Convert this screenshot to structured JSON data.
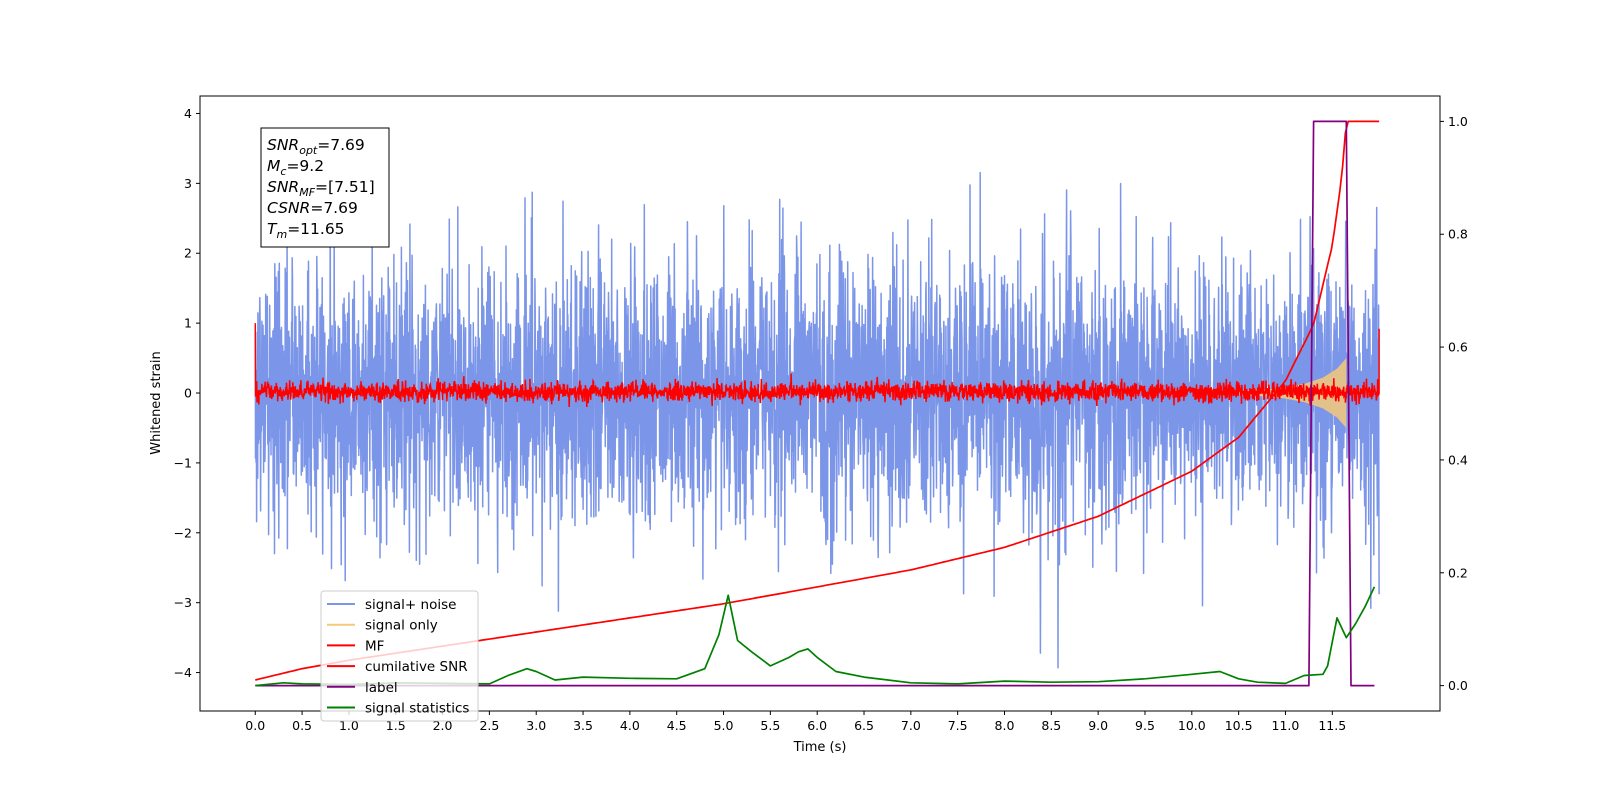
{
  "chart_data": {
    "type": "line",
    "xlabel": "Time (s)",
    "ylabel": "Whitened strain",
    "xlim": [
      -0.59,
      12.65
    ],
    "ylim": [
      -4.55,
      4.25
    ],
    "y2lim": [
      -0.045,
      1.045
    ],
    "x_ticks": [
      "0.0",
      "0.5",
      "1.0",
      "1.5",
      "2.0",
      "2.5",
      "3.0",
      "3.5",
      "4.0",
      "4.5",
      "5.0",
      "5.5",
      "6.0",
      "6.5",
      "7.0",
      "7.5",
      "8.0",
      "8.5",
      "9.0",
      "9.5",
      "10.0",
      "10.5",
      "11.0",
      "11.5"
    ],
    "y_ticks": [
      "4",
      "3",
      "2",
      "1",
      "0",
      "−1",
      "−2",
      "−3",
      "−4"
    ],
    "y2_ticks": [
      "1.0",
      "0.8",
      "0.6",
      "0.4",
      "0.2",
      "0.0"
    ],
    "info_box": [
      {
        "base": "SNR",
        "sub": "opt",
        "rest": "=7.69"
      },
      {
        "base": "M",
        "sub": "c",
        "rest": "=9.2"
      },
      {
        "base": "SNR",
        "sub": "MF",
        "rest": "=[7.51]"
      },
      {
        "base": "CSNR",
        "sub": "",
        "rest": "=7.69"
      },
      {
        "base": "T",
        "sub": "m",
        "rest": "=11.65"
      }
    ],
    "legend": [
      {
        "label": "signal+ noise",
        "color": "#7b95e8"
      },
      {
        "label": "signal only",
        "color": "#f5c97a"
      },
      {
        "label": "MF",
        "color": "#ff0000"
      },
      {
        "label": "cumilative SNR",
        "color": "#ff0000"
      },
      {
        "label": "label",
        "color": "#800080"
      },
      {
        "label": "signal statistics",
        "color": "#008000"
      }
    ],
    "series": [
      {
        "name": "signal+ noise",
        "axis": "left",
        "color": "#7b95e8",
        "description_values": {
          "x_start": 0.0,
          "x_end": 12.0,
          "y_range_typical": [
            -2.5,
            2.5
          ],
          "y_extremes": [
            -4.1,
            3.85
          ]
        }
      },
      {
        "name": "signal only",
        "axis": "left",
        "color": "#f5c97a",
        "x": [
          10.5,
          10.8,
          11.0,
          11.2,
          11.4,
          11.55,
          11.65
        ],
        "amplitude": [
          0.03,
          0.05,
          0.08,
          0.13,
          0.22,
          0.35,
          0.5
        ]
      },
      {
        "name": "MF",
        "axis": "left",
        "color": "#ff0000",
        "description_values": {
          "x_start": 0.0,
          "x_end": 12.0,
          "y_range_typical": [
            -0.15,
            0.2
          ],
          "y_extremes": [
            -0.2,
            0.4
          ],
          "start_value": 1.0,
          "end_value": 0.92
        }
      },
      {
        "name": "cumilative SNR",
        "axis": "right",
        "color": "#ff0000",
        "x": [
          0.0,
          0.5,
          1.0,
          2.0,
          3.0,
          4.0,
          5.0,
          6.0,
          7.0,
          8.0,
          9.0,
          10.0,
          10.5,
          11.0,
          11.3,
          11.5,
          11.6,
          11.65,
          11.7,
          12.0
        ],
        "y": [
          0.01,
          0.03,
          0.045,
          0.07,
          0.095,
          0.12,
          0.145,
          0.175,
          0.205,
          0.245,
          0.3,
          0.38,
          0.44,
          0.54,
          0.64,
          0.78,
          0.9,
          1.0,
          1.0,
          1.0
        ]
      },
      {
        "name": "label",
        "axis": "right",
        "color": "#800080",
        "x": [
          0.0,
          11.25,
          11.3,
          11.65,
          11.7,
          11.95
        ],
        "y": [
          0.0,
          0.0,
          1.0,
          1.0,
          0.0,
          0.0
        ]
      },
      {
        "name": "signal statistics",
        "axis": "right",
        "color": "#008000",
        "x": [
          0.0,
          0.3,
          0.5,
          1.0,
          1.5,
          2.0,
          2.5,
          2.7,
          2.9,
          3.0,
          3.2,
          3.5,
          4.0,
          4.5,
          4.8,
          4.95,
          5.05,
          5.15,
          5.3,
          5.5,
          5.7,
          5.8,
          5.9,
          6.0,
          6.2,
          6.5,
          7.0,
          7.5,
          8.0,
          8.5,
          9.0,
          9.5,
          10.0,
          10.3,
          10.5,
          10.7,
          11.0,
          11.2,
          11.4,
          11.45,
          11.55,
          11.65,
          11.75,
          11.85,
          11.95
        ],
        "y": [
          0.0,
          0.005,
          0.003,
          0.002,
          0.005,
          0.004,
          0.003,
          0.018,
          0.03,
          0.025,
          0.01,
          0.015,
          0.013,
          0.012,
          0.03,
          0.09,
          0.16,
          0.08,
          0.06,
          0.035,
          0.05,
          0.06,
          0.065,
          0.05,
          0.025,
          0.015,
          0.005,
          0.003,
          0.008,
          0.006,
          0.007,
          0.012,
          0.02,
          0.025,
          0.012,
          0.006,
          0.004,
          0.018,
          0.02,
          0.035,
          0.12,
          0.085,
          0.11,
          0.14,
          0.175
        ]
      }
    ]
  }
}
